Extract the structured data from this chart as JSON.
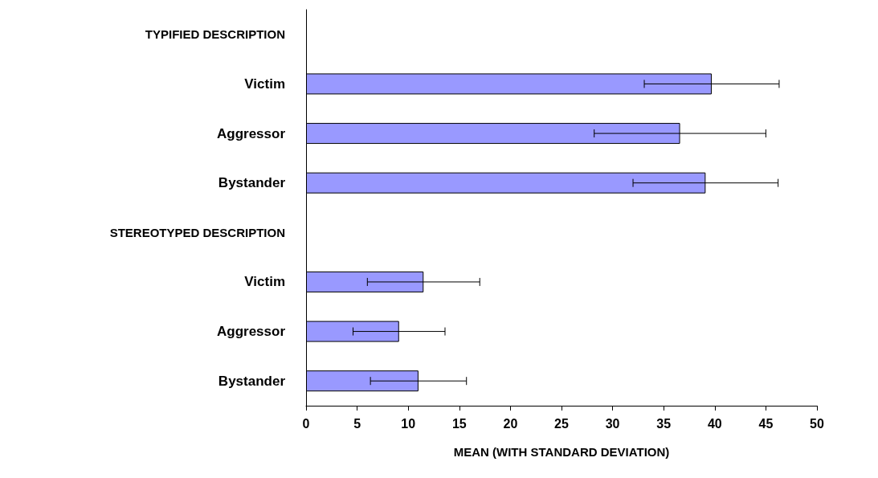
{
  "chart_data": {
    "type": "bar",
    "orientation": "horizontal",
    "categories": [
      "TYPIFIED DESCRIPTION",
      "Victim",
      "Aggressor",
      "Bystander",
      "STEREOTYPED DESCRIPTION",
      "Victim",
      "Aggressor",
      "Bystander"
    ],
    "values": [
      null,
      39.7,
      36.6,
      39.1,
      null,
      11.5,
      9.1,
      11.0
    ],
    "errors": [
      null,
      6.6,
      8.4,
      7.1,
      null,
      5.5,
      4.5,
      4.7
    ],
    "color": "#9999ff",
    "xlabel": "MEAN (WITH STANDARD DEVIATION)",
    "xlim": [
      0,
      50
    ],
    "xticks": [
      0,
      5,
      10,
      15,
      20,
      25,
      30,
      35,
      40,
      45,
      50
    ],
    "grid": false
  }
}
